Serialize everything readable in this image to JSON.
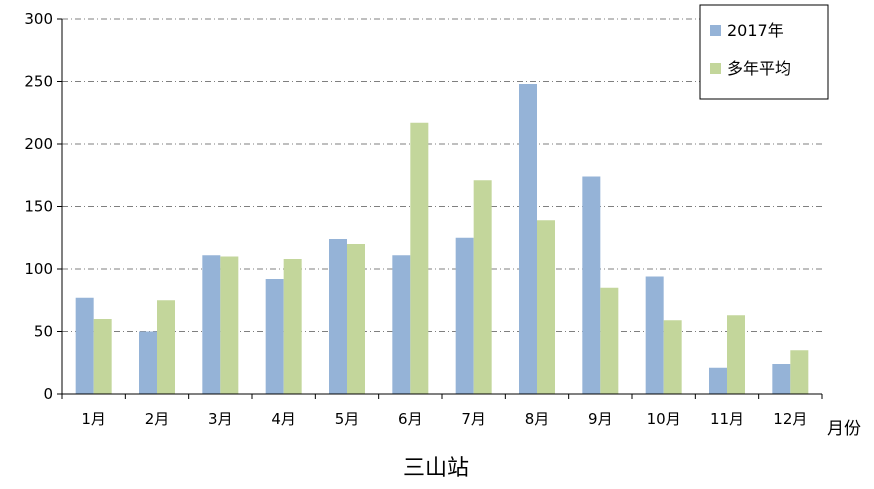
{
  "chart_data": {
    "type": "bar",
    "title": "三山站",
    "xlabel": "月份",
    "ylabel": "",
    "ylim": [
      0,
      300
    ],
    "yticks": [
      0,
      50,
      100,
      150,
      200,
      250,
      300
    ],
    "grid": true,
    "legend_position": "top-right",
    "categories": [
      "1月",
      "2月",
      "3月",
      "4月",
      "5月",
      "6月",
      "7月",
      "8月",
      "9月",
      "10月",
      "11月",
      "12月"
    ],
    "series": [
      {
        "name": "2017年",
        "color": "#95b3d7",
        "values": [
          77,
          50,
          111,
          92,
          124,
          111,
          125,
          248,
          174,
          94,
          21,
          24
        ]
      },
      {
        "name": "多年平均",
        "color": "#c3d69b",
        "values": [
          60,
          75,
          110,
          108,
          120,
          217,
          171,
          139,
          85,
          59,
          63,
          35
        ]
      }
    ]
  }
}
